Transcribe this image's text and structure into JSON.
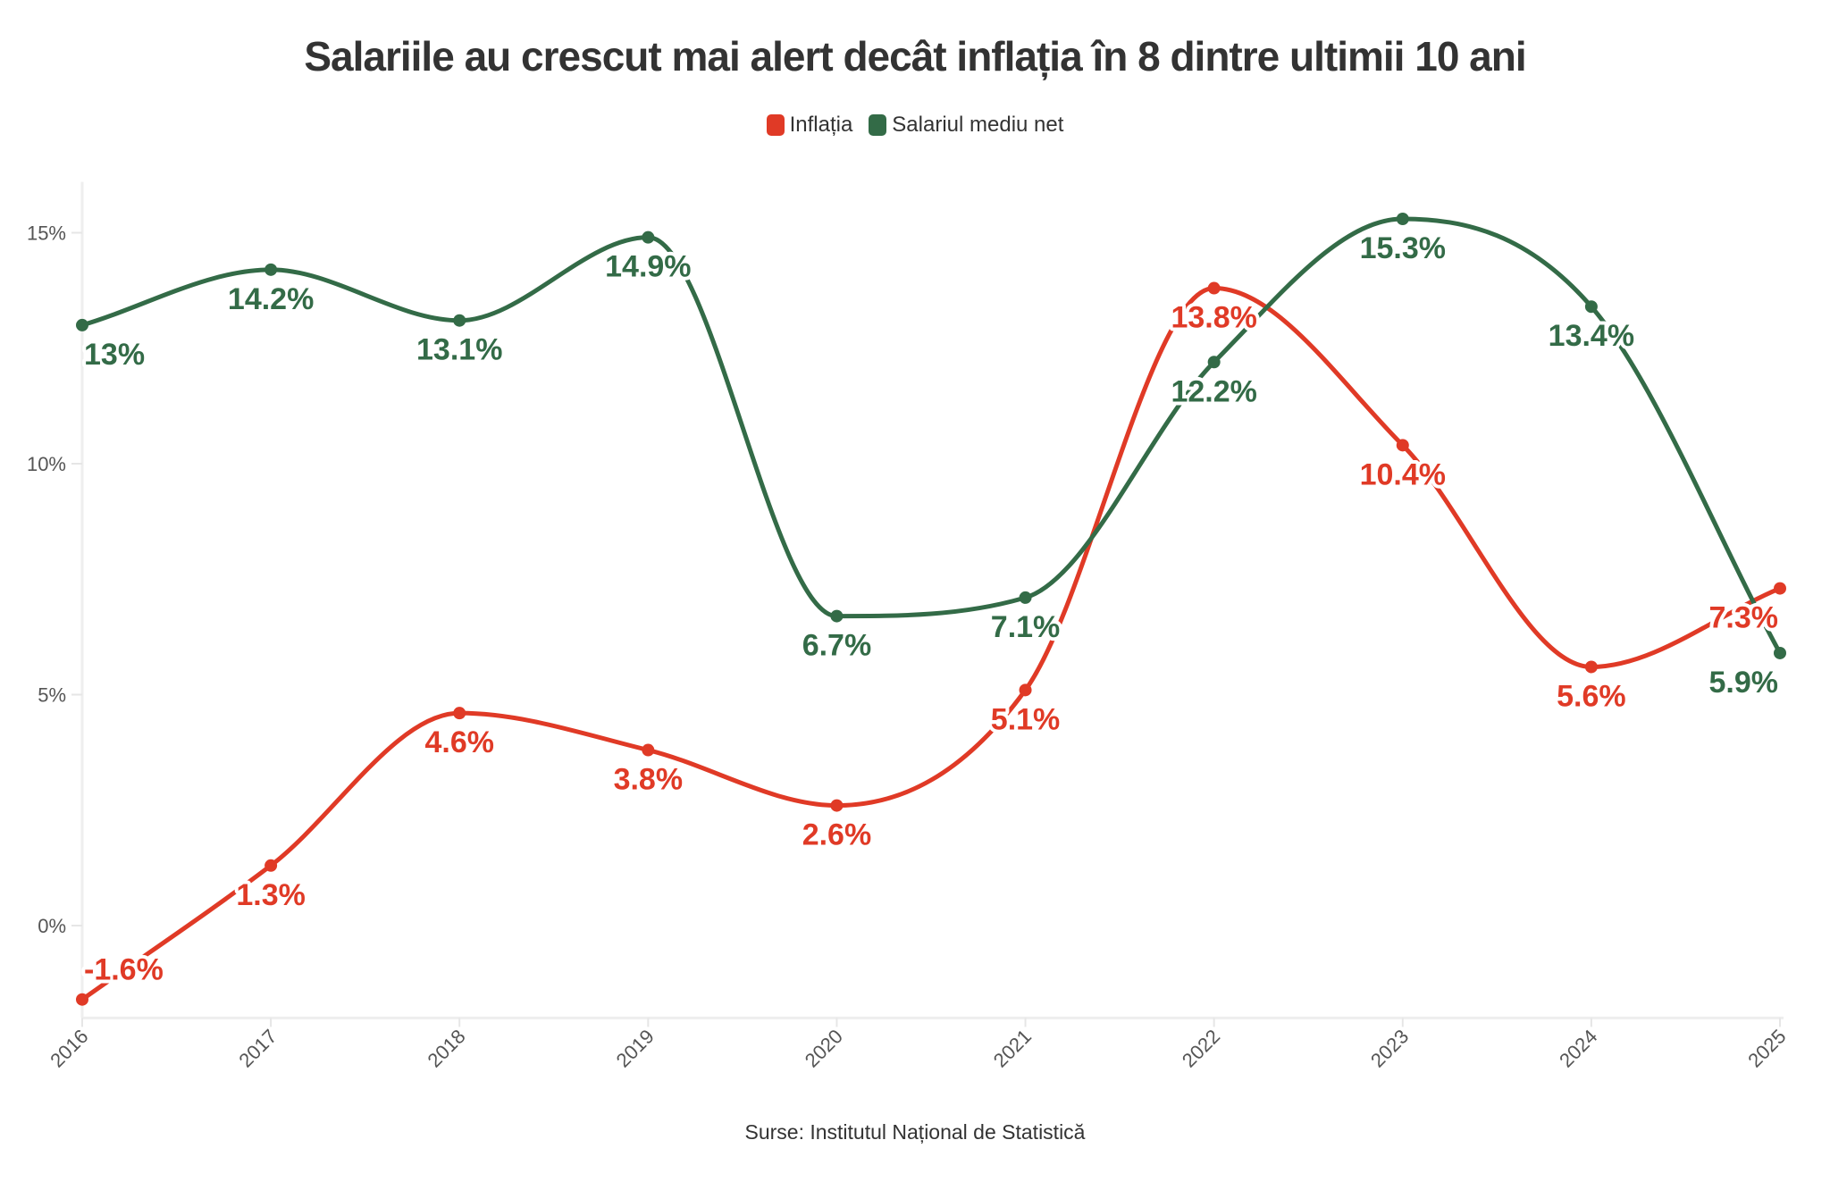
{
  "chart_data": {
    "type": "line",
    "title": "Salariile au crescut mai alert decât inflația în 8 dintre ultimii 10 ani",
    "source": "Surse: Institutul Național de Statistică",
    "categories": [
      "2016",
      "2017",
      "2018",
      "2019",
      "2020",
      "2021",
      "2022",
      "2023",
      "2024",
      "2025"
    ],
    "series": [
      {
        "name": "Inflația",
        "color": "#e03a26",
        "values": [
          -1.6,
          1.3,
          4.6,
          3.8,
          2.6,
          5.1,
          13.8,
          10.4,
          5.6,
          7.3
        ]
      },
      {
        "name": "Salariul mediu net",
        "color": "#336b47",
        "values": [
          13,
          14.2,
          13.1,
          14.9,
          6.7,
          7.1,
          12.2,
          15.3,
          13.4,
          5.9
        ]
      }
    ],
    "y_ticks": [
      "0%",
      "5%",
      "10%",
      "15%"
    ],
    "y_tick_values": [
      0,
      5,
      10,
      15
    ],
    "ylim": [
      -2,
      16.1
    ],
    "legend": "top-center",
    "grid": false,
    "xlabel": "",
    "ylabel": ""
  }
}
